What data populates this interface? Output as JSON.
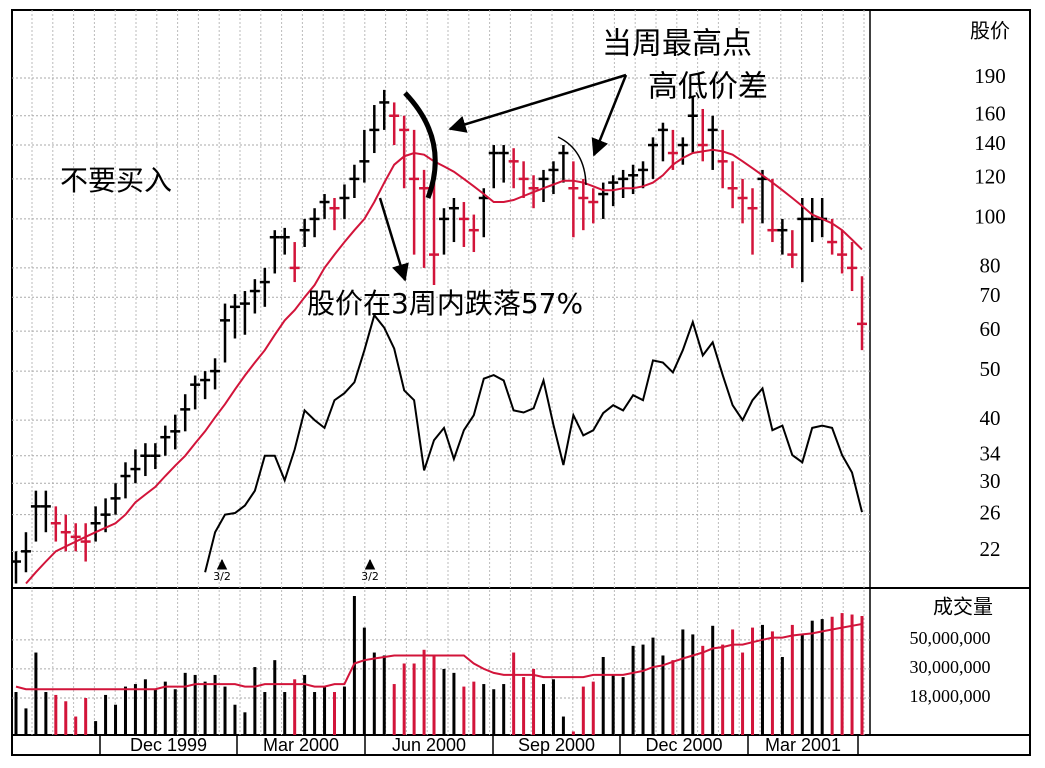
{
  "chart_data": {
    "type": "stock",
    "y_label": "股价",
    "volume_label": "成交量",
    "annotations": [
      "不要买入",
      "当周最高点",
      "高低价差",
      "股价在3周内跌落57%"
    ],
    "split_labels": [
      "3/2",
      "3/2"
    ],
    "x_labels": [
      "Dec 1999",
      "Mar 2000",
      "Jun 2000",
      "Sep 2000",
      "Dec 2000",
      "Mar 2001"
    ],
    "log_scale": true,
    "grid": true,
    "up_color": "#000000",
    "down_color": "#d2143a",
    "ylim": [
      18.7,
      259
    ],
    "yticks": [
      190,
      160,
      140,
      120,
      100,
      80,
      70,
      60,
      50,
      40,
      34,
      30,
      26,
      22
    ],
    "close": [
      21,
      22,
      27,
      27,
      25,
      24,
      23.5,
      23,
      25,
      26,
      28,
      31,
      32,
      34,
      34,
      37,
      38,
      42,
      47,
      48,
      50,
      63,
      67,
      68,
      72,
      75,
      92,
      92,
      80,
      95,
      100,
      108,
      105,
      110,
      120,
      130,
      150,
      170,
      160,
      150,
      120,
      115,
      85,
      100,
      105,
      100,
      95,
      110,
      135,
      135,
      130,
      120,
      115,
      120,
      125,
      135,
      115,
      110,
      108,
      112,
      118,
      120,
      122,
      125,
      140,
      150,
      135,
      140,
      160,
      140,
      150,
      130,
      115,
      110,
      105,
      120,
      95,
      95,
      85,
      100,
      100,
      100,
      90,
      85,
      80,
      62
    ],
    "high": [
      22,
      24,
      29,
      29,
      27,
      26,
      25,
      25,
      27,
      28,
      30,
      33,
      35,
      36,
      36,
      39,
      41,
      45,
      49,
      50,
      53,
      68,
      71,
      72,
      76,
      80,
      95,
      96,
      90,
      100,
      105,
      112,
      110,
      117,
      128,
      150,
      168,
      180,
      170,
      160,
      150,
      125,
      118,
      105,
      110,
      108,
      102,
      115,
      140,
      140,
      138,
      130,
      122,
      125,
      130,
      140,
      130,
      120,
      115,
      118,
      122,
      125,
      128,
      130,
      145,
      155,
      150,
      145,
      175,
      165,
      160,
      150,
      130,
      120,
      115,
      125,
      120,
      100,
      95,
      110,
      110,
      110,
      100,
      95,
      90,
      77
    ],
    "low": [
      19,
      20,
      23,
      24,
      23,
      22,
      22,
      21,
      23,
      24,
      26,
      28,
      30,
      31,
      32,
      34,
      35,
      38,
      42,
      44,
      46,
      52,
      58,
      59,
      65,
      67,
      78,
      85,
      75,
      88,
      92,
      100,
      95,
      100,
      110,
      118,
      135,
      150,
      140,
      115,
      85,
      80,
      74,
      85,
      90,
      88,
      86,
      92,
      115,
      118,
      115,
      110,
      105,
      108,
      112,
      118,
      92,
      95,
      98,
      100,
      106,
      110,
      112,
      115,
      120,
      130,
      125,
      128,
      135,
      130,
      125,
      115,
      105,
      98,
      85,
      98,
      90,
      85,
      80,
      75,
      90,
      92,
      85,
      78,
      72,
      55
    ],
    "ma_color": "#d2143a",
    "ma": [
      null,
      19,
      20,
      21,
      22,
      22.5,
      23,
      23.5,
      24,
      24.5,
      25,
      26,
      27.5,
      28.5,
      29.5,
      31,
      32.5,
      34,
      36,
      38,
      40.5,
      43,
      46,
      49,
      52,
      55,
      59,
      63,
      66,
      70,
      74,
      80,
      85,
      90,
      95,
      100,
      108,
      118,
      128,
      133,
      135,
      134,
      130,
      127,
      124,
      120,
      116,
      112,
      108,
      108,
      109,
      111,
      113,
      115,
      117,
      119,
      119,
      118,
      116,
      114,
      114,
      115,
      115,
      116,
      118,
      122,
      128,
      132,
      135,
      136,
      137,
      136,
      134,
      130,
      126,
      122,
      118,
      114,
      110,
      106,
      102,
      100,
      98,
      95,
      91,
      87
    ],
    "rs_color": "#000000",
    "rs": [
      null,
      null,
      null,
      null,
      null,
      null,
      null,
      null,
      null,
      null,
      null,
      null,
      null,
      null,
      null,
      null,
      null,
      null,
      null,
      20,
      24,
      26,
      26.2,
      27.1,
      29,
      34,
      34,
      30.4,
      35,
      41.8,
      40,
      38.6,
      43.8,
      45.2,
      47.5,
      55,
      64.5,
      60.9,
      55.4,
      45.8,
      43.8,
      31.8,
      36.5,
      38.6,
      33.5,
      38.2,
      40.9,
      48.3,
      49.1,
      47.9,
      41.8,
      41.4,
      42.2,
      47.9,
      39.1,
      32.6,
      40.9,
      37.3,
      38.2,
      41.3,
      42.8,
      41.8,
      44.8,
      43.8,
      52.5,
      52,
      49.7,
      55,
      62.5,
      53.7,
      57,
      49.1,
      42.8,
      40,
      43.8,
      46.2,
      38.2,
      39,
      34.1,
      33,
      38.6,
      39,
      38.6,
      34.1,
      31.5,
      26.3
    ],
    "vlim": [
      9400000,
      120000000
    ],
    "vticks": [
      {
        "value": 50000000,
        "label": "50,000,000"
      },
      {
        "value": 30000000,
        "label": "30,000,000"
      },
      {
        "value": 18000000,
        "label": "18,000,000"
      }
    ],
    "volume": [
      20000000,
      15000000,
      40000000,
      20000000,
      19000000,
      17000000,
      13000000,
      18000000,
      12000000,
      19000000,
      16000000,
      22000000,
      23000000,
      25000000,
      21000000,
      24000000,
      21000000,
      28000000,
      27000000,
      24000000,
      27000000,
      22000000,
      16000000,
      14000000,
      31000000,
      20000000,
      35000000,
      20000000,
      25000000,
      27000000,
      20000000,
      22000000,
      20000000,
      22000000,
      108000000,
      62000000,
      40000000,
      38000000,
      23000000,
      33000000,
      33000000,
      42000000,
      38000000,
      30000000,
      28000000,
      22000000,
      24000000,
      23000000,
      21000000,
      23000000,
      40000000,
      26000000,
      30000000,
      23000000,
      25000000,
      13000000,
      10000000,
      22000000,
      24000000,
      37000000,
      27000000,
      26000000,
      45000000,
      46000000,
      52000000,
      38000000,
      35000000,
      60000000,
      55000000,
      45000000,
      64000000,
      46000000,
      60000000,
      40000000,
      62000000,
      65000000,
      58000000,
      37000000,
      65000000,
      55000000,
      70000000,
      72000000,
      75000000,
      80000000,
      78000000,
      76000000
    ],
    "volume_ma_color": "#d2143a",
    "volume_ma": [
      22000000,
      21000000,
      21000000,
      21000000,
      21000000,
      21000000,
      21000000,
      21000000,
      21000000,
      21000000,
      21000000,
      21000000,
      21000000,
      21000000,
      21000000,
      22000000,
      22000000,
      22000000,
      23000000,
      23000000,
      23000000,
      23000000,
      23000000,
      22000000,
      22000000,
      23000000,
      23000000,
      23000000,
      23000000,
      23000000,
      22000000,
      22000000,
      23000000,
      23000000,
      33000000,
      35000000,
      36000000,
      37000000,
      38000000,
      38000000,
      38000000,
      38000000,
      38000000,
      38000000,
      38000000,
      38000000,
      33000000,
      30000000,
      28000000,
      27000000,
      27000000,
      27000000,
      27000000,
      26000000,
      26000000,
      26000000,
      26000000,
      26000000,
      27000000,
      27000000,
      27000000,
      27000000,
      28000000,
      29000000,
      31000000,
      32000000,
      34000000,
      36000000,
      38000000,
      40000000,
      43000000,
      44000000,
      46000000,
      46000000,
      48000000,
      50000000,
      52000000,
      52000000,
      54000000,
      55000000,
      56000000,
      58000000,
      60000000,
      62000000,
      64000000,
      66000000
    ]
  }
}
